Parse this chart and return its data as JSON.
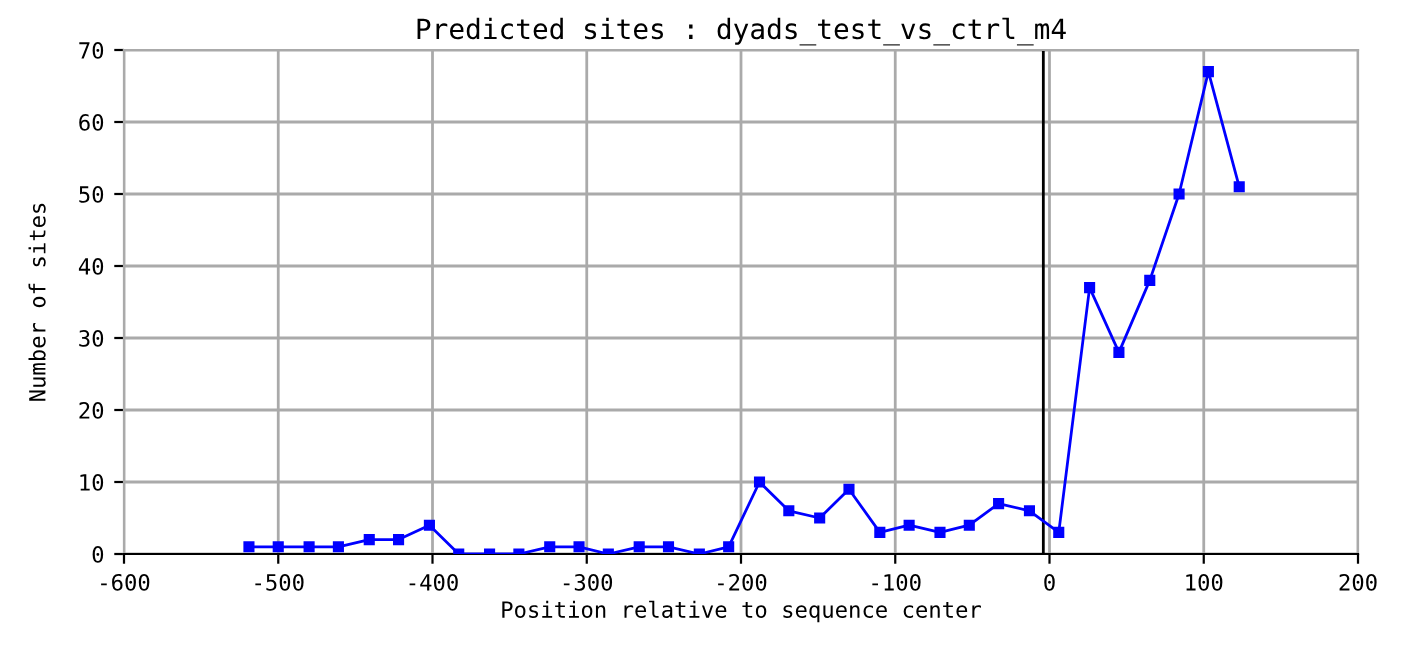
{
  "chart_data": {
    "type": "line",
    "title": "Predicted sites : dyads_test_vs_ctrl_m4",
    "xlabel": "Position relative to sequence center",
    "ylabel": "Number of sites",
    "x": [
      -519,
      -500,
      -480,
      -461,
      -441,
      -422,
      -402,
      -383,
      -363,
      -344,
      -324,
      -305,
      -286,
      -266,
      -247,
      -227,
      -208,
      -188,
      -169,
      -149,
      -130,
      -110,
      -91,
      -71,
      -52,
      -33,
      -13,
      6,
      26,
      45,
      65,
      84,
      103,
      123
    ],
    "series": [
      {
        "color": "#0000ff",
        "values": [
          1,
          1,
          1,
          1,
          2,
          2,
          4,
          0,
          0,
          0,
          1,
          1,
          0,
          1,
          1,
          0,
          1,
          10,
          6,
          5,
          9,
          3,
          4,
          3,
          4,
          7,
          6,
          3,
          37,
          28,
          38,
          50,
          67,
          51
        ]
      }
    ],
    "xlim": [
      -600,
      200
    ],
    "xticks": [
      -600,
      -500,
      -400,
      -300,
      -200,
      -100,
      0,
      100,
      200
    ],
    "ylim": [
      0,
      70
    ],
    "yticks": [
      0,
      10,
      20,
      30,
      40,
      50,
      60,
      70
    ],
    "ref_lines": [
      {
        "axis": "x",
        "value": -4,
        "color": "#000000"
      }
    ],
    "grid": true,
    "marker": "square",
    "line_style": "solid",
    "legend": false
  }
}
